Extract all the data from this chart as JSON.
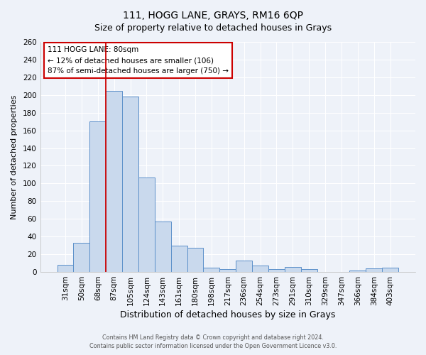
{
  "title": "111, HOGG LANE, GRAYS, RM16 6QP",
  "subtitle": "Size of property relative to detached houses in Grays",
  "xlabel": "Distribution of detached houses by size in Grays",
  "ylabel": "Number of detached properties",
  "categories": [
    "31sqm",
    "50sqm",
    "68sqm",
    "87sqm",
    "105sqm",
    "124sqm",
    "143sqm",
    "161sqm",
    "180sqm",
    "198sqm",
    "217sqm",
    "236sqm",
    "254sqm",
    "273sqm",
    "291sqm",
    "310sqm",
    "329sqm",
    "347sqm",
    "366sqm",
    "384sqm",
    "403sqm"
  ],
  "values": [
    8,
    33,
    170,
    205,
    198,
    107,
    57,
    30,
    27,
    5,
    3,
    13,
    7,
    3,
    6,
    3,
    0,
    0,
    2,
    4,
    5
  ],
  "bar_color": "#c9d9ed",
  "bar_edge_color": "#5b8fc9",
  "vline_x": 2.5,
  "vline_color": "#cc0000",
  "annotation_title": "111 HOGG LANE: 80sqm",
  "annotation_line1": "← 12% of detached houses are smaller (106)",
  "annotation_line2": "87% of semi-detached houses are larger (750) →",
  "annotation_box_color": "#cc0000",
  "ylim": [
    0,
    260
  ],
  "yticks": [
    0,
    20,
    40,
    60,
    80,
    100,
    120,
    140,
    160,
    180,
    200,
    220,
    240,
    260
  ],
  "footer1": "Contains HM Land Registry data © Crown copyright and database right 2024.",
  "footer2": "Contains public sector information licensed under the Open Government Licence v3.0.",
  "bg_color": "#eef2f9",
  "plot_bg_color": "#eef2f9",
  "grid_color": "#ffffff",
  "title_fontsize": 10,
  "subtitle_fontsize": 9,
  "xlabel_fontsize": 9,
  "ylabel_fontsize": 8,
  "tick_fontsize": 7.5,
  "annot_fontsize": 7.5,
  "footer_fontsize": 5.8
}
